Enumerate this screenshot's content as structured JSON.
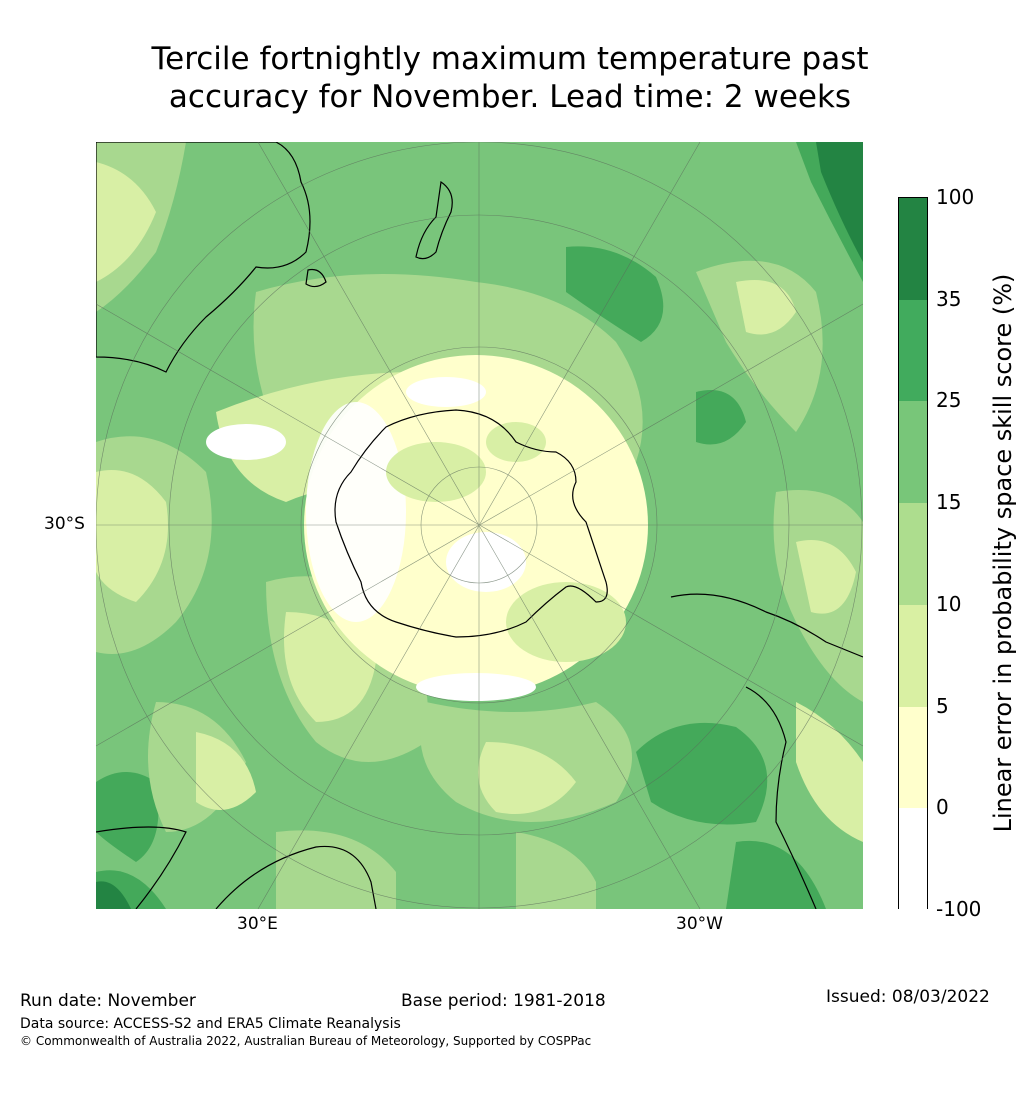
{
  "title_line1": "Tercile fortnightly maximum temperature past",
  "title_line2": "accuracy for November. Lead time: 2 weeks",
  "map": {
    "projection": "south-polar-stereographic",
    "lat_label": "30°S",
    "lon_labels": [
      "30°E",
      "30°W"
    ],
    "colors": {
      "ocean_base": "#79c57b",
      "band_dark": "#44a95a",
      "band_mid": "#a8d88f",
      "band_light": "#d8efa5",
      "band_pale": "#ffffcc",
      "band_white": "#ffffff",
      "coast": "#000000",
      "grid": "#5a6b5a"
    }
  },
  "colorbar": {
    "title": "Linear error in probability space skill score (%)",
    "bins": [
      {
        "from": -100,
        "to": 0,
        "color": "#ffffff"
      },
      {
        "from": 0,
        "to": 5,
        "color": "#ffffcc"
      },
      {
        "from": 5,
        "to": 10,
        "color": "#d9f0a3"
      },
      {
        "from": 10,
        "to": 15,
        "color": "#addd8e"
      },
      {
        "from": 15,
        "to": 25,
        "color": "#78c679"
      },
      {
        "from": 25,
        "to": 35,
        "color": "#41ab5d"
      },
      {
        "from": 35,
        "to": 100,
        "color": "#238443"
      }
    ],
    "tick_labels": [
      "100",
      "35",
      "25",
      "15",
      "10",
      "5",
      "0",
      "-100"
    ]
  },
  "footer": {
    "run_date": "Run date: November",
    "base_period": "Base period: 1981-2018",
    "issued": "Issued: 08/03/2022",
    "data_source": "Data source: ACCESS-S2 and ERA5 Climate Reanalysis",
    "copyright": "© Commonwealth of Australia 2022, Australian Bureau of Meteorology, Supported by COSPPac"
  }
}
